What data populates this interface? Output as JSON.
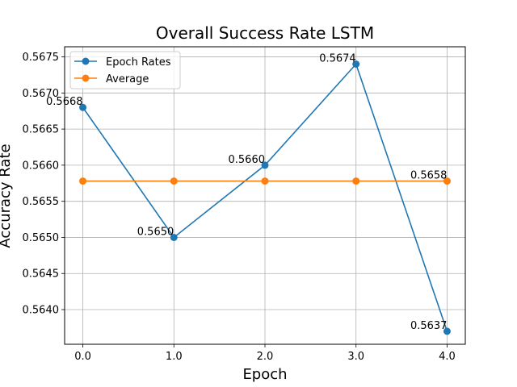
{
  "chart_data": {
    "type": "line",
    "title": "Overall Success Rate LSTM",
    "xlabel": "Epoch",
    "ylabel": "Accuracy Rate",
    "x": [
      0,
      1,
      2,
      3,
      4
    ],
    "x_tick_labels": [
      "0.0",
      "1.0",
      "2.0",
      "3.0",
      "4.0"
    ],
    "xlim": [
      -0.2,
      4.2
    ],
    "ylim": [
      0.56352,
      0.56764
    ],
    "y_ticks": [
      0.564,
      0.5645,
      0.565,
      0.5655,
      0.566,
      0.5665,
      0.567,
      0.5675
    ],
    "y_tick_labels": [
      "0.5640",
      "0.5645",
      "0.5650",
      "0.5655",
      "0.5660",
      "0.5665",
      "0.5670",
      "0.5675"
    ],
    "grid": true,
    "legend_position": "top-left",
    "series": [
      {
        "name": "Epoch Rates",
        "color": "#1f77b4",
        "values": [
          0.5668,
          0.565,
          0.566,
          0.5674,
          0.5637
        ],
        "labels": [
          "0.5668",
          "0.5650",
          "0.5660",
          "0.5674",
          "0.5637"
        ]
      },
      {
        "name": "Average",
        "color": "#ff7f0e",
        "values": [
          0.56578,
          0.56578,
          0.56578,
          0.56578,
          0.56578
        ],
        "labels": [
          "",
          "",
          "",
          "",
          "0.5658"
        ]
      }
    ]
  }
}
